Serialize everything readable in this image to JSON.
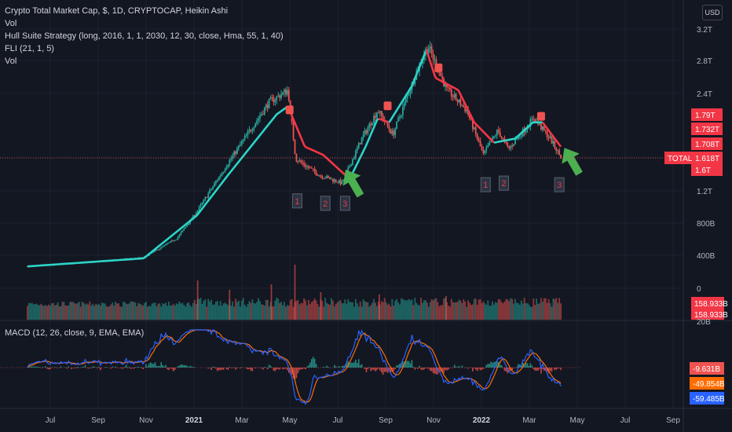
{
  "header": {
    "title": "Crypto Total Market Cap, $, 1D, CRYPTOCAP, Heikin Ashi",
    "line2": "Vol",
    "line3": "Hull Suite Strategy (long, 2016, 1, 1, 2030, 12, 30, close, Hma, 55, 1, 40)",
    "line4": "FLI (21, 1, 5)",
    "line5": "Vol",
    "currency": "USD"
  },
  "macd_legend": "MACD (12, 26, close, 9, EMA, EMA)",
  "colors": {
    "background": "#131722",
    "up": "#26a69a",
    "down": "#ef5350",
    "hull_up": "#2bd4c8",
    "hull_down": "#f23645",
    "macd": "#2962ff",
    "signal": "#ff6d00",
    "arrow": "#4caf50"
  },
  "chart_data": {
    "type": "candlestick",
    "y_axis_labels": [
      "3.2T",
      "2.8T",
      "2.4T",
      "1.2T",
      "800B",
      "400B",
      "0"
    ],
    "price_labels": [
      {
        "text": "1.79T",
        "color": "#f23645"
      },
      {
        "text": "1.732T",
        "color": "#f23645"
      },
      {
        "text": "1.708T",
        "color": "#f23645"
      },
      {
        "text": "1.618T",
        "color": "#f23645"
      },
      {
        "text": "1.6T",
        "color": "#f23645"
      }
    ],
    "symbol_tag": "TOTAL",
    "volume_labels": [
      "158.933B",
      "158.933B"
    ],
    "volume_scale_label": "20B",
    "macd_labels": [
      {
        "text": "-9.631B",
        "color": "#ef5350"
      },
      {
        "text": "-49.854B",
        "color": "#ff6d00"
      },
      {
        "text": "-59.485B",
        "color": "#2962ff"
      }
    ],
    "x_axis_labels": [
      "Jul",
      "Sep",
      "Nov",
      "2021",
      "Mar",
      "May",
      "Jul",
      "Sep",
      "Nov",
      "2022",
      "Mar",
      "May",
      "Jul",
      "Sep"
    ],
    "price_anchors": [
      [
        "2020-06-01",
        0.27
      ],
      [
        "2020-09-01",
        0.33
      ],
      [
        "2020-11-01",
        0.38
      ],
      [
        "2020-12-15",
        0.62
      ],
      [
        "2021-01-10",
        0.95
      ],
      [
        "2021-02-20",
        1.55
      ],
      [
        "2021-04-15",
        2.3
      ],
      [
        "2021-05-10",
        2.45
      ],
      [
        "2021-05-20",
        1.6
      ],
      [
        "2021-06-20",
        1.4
      ],
      [
        "2021-07-20",
        1.3
      ],
      [
        "2021-08-15",
        1.85
      ],
      [
        "2021-09-05",
        2.2
      ],
      [
        "2021-09-25",
        1.9
      ],
      [
        "2021-10-25",
        2.65
      ],
      [
        "2021-11-10",
        3.0
      ],
      [
        "2021-12-05",
        2.45
      ],
      [
        "2021-12-31",
        2.2
      ],
      [
        "2022-01-22",
        1.65
      ],
      [
        "2022-02-10",
        1.95
      ],
      [
        "2022-02-24",
        1.72
      ],
      [
        "2022-03-29",
        2.1
      ],
      [
        "2022-04-20",
        1.85
      ],
      [
        "2022-05-04",
        1.62
      ]
    ],
    "hull_anchors": [
      [
        "2020-06-01",
        0.27
      ],
      [
        "2020-11-01",
        0.37
      ],
      [
        "2021-01-10",
        0.9
      ],
      [
        "2021-02-20",
        1.4
      ],
      [
        "2021-04-25",
        2.15
      ],
      [
        "2021-05-10",
        2.25
      ],
      [
        "2021-05-12",
        2.2
      ],
      [
        "2021-06-01",
        1.75
      ],
      [
        "2021-06-25",
        1.65
      ],
      [
        "2021-07-30",
        1.35
      ],
      [
        "2021-08-20",
        1.75
      ],
      [
        "2021-09-05",
        2.1
      ],
      [
        "2021-09-20",
        2.05
      ],
      [
        "2021-10-20",
        2.5
      ],
      [
        "2021-11-08",
        2.95
      ],
      [
        "2021-11-20",
        2.6
      ],
      [
        "2021-12-20",
        2.45
      ],
      [
        "2022-01-10",
        2.05
      ],
      [
        "2022-02-05",
        1.8
      ],
      [
        "2022-03-05",
        1.85
      ],
      [
        "2022-03-28",
        2.05
      ],
      [
        "2022-04-10",
        2.05
      ],
      [
        "2022-05-04",
        1.75
      ]
    ],
    "annotations": {
      "numbers": [
        {
          "label": "1",
          "date": "2021-05-22",
          "value": 1.08
        },
        {
          "label": "2",
          "date": "2021-06-28",
          "value": 1.05
        },
        {
          "label": "3",
          "date": "2021-07-24",
          "value": 1.05
        },
        {
          "label": "1",
          "date": "2022-01-25",
          "value": 1.28
        },
        {
          "label": "2",
          "date": "2022-02-18",
          "value": 1.3
        },
        {
          "label": "3",
          "date": "2022-05-02",
          "value": 1.28
        }
      ],
      "up_arrows": [
        {
          "date": "2021-08-05",
          "value": 1.28
        },
        {
          "date": "2022-05-20",
          "value": 1.55
        }
      ]
    }
  }
}
